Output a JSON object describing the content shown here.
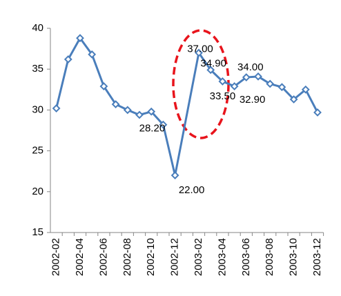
{
  "chart_data": {
    "type": "line",
    "categories": [
      "2002-02",
      null,
      "2002-04",
      null,
      "2002-06",
      null,
      "2002-08",
      null,
      "2002-10",
      null,
      "2002-12",
      null,
      "2003-02",
      null,
      "2003-04",
      null,
      "2003-06",
      null,
      "2003-08",
      null,
      "2003-10",
      null,
      "2003-12"
    ],
    "series": [
      {
        "color": "#4a7ebb",
        "values": [
          30.2,
          36.2,
          38.8,
          36.8,
          32.9,
          30.7,
          30.0,
          29.4,
          29.8,
          28.2,
          22.0,
          null,
          37.0,
          34.9,
          33.5,
          32.9,
          34.0,
          34.1,
          33.2,
          32.8,
          31.3,
          32.5,
          29.7
        ],
        "value_labels": [
          null,
          null,
          null,
          null,
          null,
          null,
          null,
          null,
          null,
          "28.20",
          "22.00",
          null,
          "37.00",
          "34.90",
          "33.50",
          "32.90",
          "34.00",
          null,
          null,
          null,
          null,
          null,
          null
        ]
      }
    ],
    "ylim": [
      15,
      40
    ],
    "yticks": [
      15,
      20,
      25,
      30,
      35,
      40
    ],
    "grid": false,
    "connect_gaps": true
  }
}
